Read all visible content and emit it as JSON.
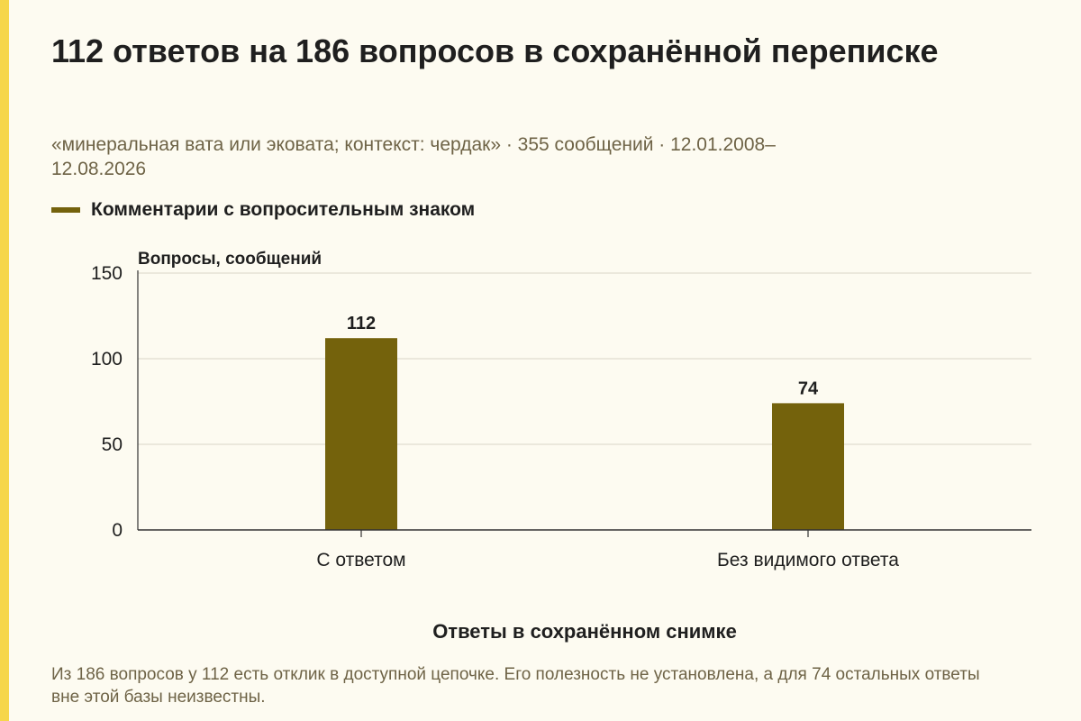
{
  "header": {
    "title": "112 ответов на 186 вопросов в сохранённой переписке",
    "subtitle": "«минеральная вата или эковата; контекст: чердак» · 355 сообщений · 12.01.2008–12.08.2026"
  },
  "legend": {
    "label": "Комментарии с вопросительным знаком"
  },
  "colors": {
    "bar": "#74620c",
    "accent": "#f6d64a",
    "background": "#fdfbf1"
  },
  "chart_data": {
    "type": "bar",
    "categories": [
      "С ответом",
      "Без видимого ответа"
    ],
    "series": [
      {
        "name": "Комментарии с вопросительным знаком",
        "values": [
          112,
          74
        ]
      }
    ],
    "data_labels": [
      "112",
      "74"
    ],
    "ylabel": "Вопросы, сообщений",
    "xlabel": "Ответы в сохранённом снимке",
    "ylim": [
      0,
      150
    ],
    "yticks": [
      0,
      50,
      100,
      150
    ],
    "grid": true,
    "legend_position": "top-left"
  },
  "footer": {
    "note": "Из 186 вопросов у 112 есть отклик в доступной цепочке. Его полезность не установлена, а для 74 остальных ответы вне этой базы неизвестны."
  }
}
